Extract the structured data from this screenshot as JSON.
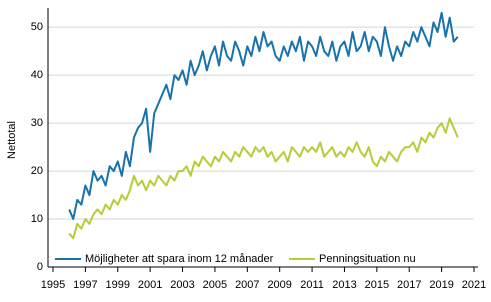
{
  "chart_data": {
    "type": "line",
    "y_label": "Nettotal",
    "x": [
      1996,
      1996.25,
      1996.5,
      1996.75,
      1997,
      1997.25,
      1997.5,
      1997.75,
      1998,
      1998.25,
      1998.5,
      1998.75,
      1999,
      1999.25,
      1999.5,
      1999.75,
      2000,
      2000.25,
      2000.5,
      2000.75,
      2001,
      2001.25,
      2001.5,
      2001.75,
      2002,
      2002.25,
      2002.5,
      2002.75,
      2003,
      2003.25,
      2003.5,
      2003.75,
      2004,
      2004.25,
      2004.5,
      2004.75,
      2005,
      2005.25,
      2005.5,
      2005.75,
      2006,
      2006.25,
      2006.5,
      2006.75,
      2007,
      2007.25,
      2007.5,
      2007.75,
      2008,
      2008.25,
      2008.5,
      2008.75,
      2009,
      2009.25,
      2009.5,
      2009.75,
      2010,
      2010.25,
      2010.5,
      2010.75,
      2011,
      2011.25,
      2011.5,
      2011.75,
      2012,
      2012.25,
      2012.5,
      2012.75,
      2013,
      2013.25,
      2013.5,
      2013.75,
      2014,
      2014.25,
      2014.5,
      2014.75,
      2015,
      2015.25,
      2015.5,
      2015.75,
      2016,
      2016.25,
      2016.5,
      2016.75,
      2017,
      2017.25,
      2017.5,
      2017.75,
      2018,
      2018.25,
      2018.5,
      2018.75,
      2019,
      2019.25,
      2019.5,
      2019.75,
      2020
    ],
    "series": [
      {
        "name": "Möjligheter att spara inom 12 månader",
        "color": "#1a72ad",
        "values": [
          12,
          10,
          14,
          13,
          17,
          15,
          20,
          18,
          19,
          17,
          21,
          20,
          22,
          19,
          24,
          21,
          27,
          29,
          30,
          33,
          24,
          32,
          34,
          36,
          38,
          35,
          40,
          39,
          41,
          38,
          43,
          40,
          42,
          45,
          41,
          44,
          46,
          42,
          47,
          44,
          43,
          47,
          45,
          42,
          46,
          44,
          48,
          45,
          49,
          46,
          47,
          44,
          43,
          46,
          44,
          47,
          45,
          48,
          43,
          47,
          46,
          44,
          48,
          45,
          44,
          47,
          43,
          46,
          47,
          44,
          49,
          45,
          46,
          49,
          45,
          48,
          47,
          44,
          50,
          46,
          43,
          46,
          44,
          47,
          46,
          49,
          47,
          50,
          48,
          46,
          51,
          49,
          53,
          48,
          52,
          47,
          48
        ]
      },
      {
        "name": "Penningsituation nu",
        "color": "#b2cf3a",
        "values": [
          7,
          6,
          9,
          8,
          10,
          9,
          11,
          12,
          11,
          13,
          12,
          14,
          13,
          15,
          14,
          16,
          19,
          17,
          18,
          16,
          18,
          17,
          19,
          18,
          17,
          19,
          18,
          20,
          20,
          21,
          19,
          22,
          21,
          23,
          22,
          21,
          23,
          22,
          24,
          23,
          22,
          24,
          23,
          25,
          24,
          23,
          25,
          24,
          25,
          23,
          24,
          22,
          23,
          24,
          22,
          25,
          24,
          23,
          25,
          24,
          25,
          24,
          26,
          23,
          24,
          25,
          23,
          24,
          23,
          25,
          24,
          26,
          24,
          23,
          25,
          22,
          21,
          23,
          22,
          24,
          23,
          22,
          24,
          25,
          25,
          26,
          24,
          27,
          26,
          28,
          27,
          29,
          30,
          28,
          31,
          29,
          27
        ]
      }
    ],
    "xlim": [
      1995,
      2021
    ],
    "xticks": [
      1995,
      1997,
      1999,
      2001,
      2003,
      2005,
      2007,
      2009,
      2011,
      2013,
      2015,
      2017,
      2019,
      2021
    ],
    "ylim": [
      0,
      54
    ],
    "yticks": [
      0,
      10,
      20,
      30,
      40,
      50
    ],
    "grid": true
  }
}
